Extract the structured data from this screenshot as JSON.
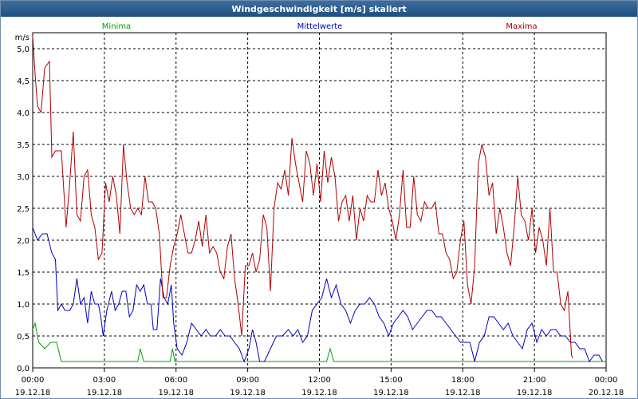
{
  "window": {
    "title": "Windgeschwindigkeit [m/s] skaliert"
  },
  "chart_data": {
    "type": "line",
    "title": "Windgeschwindigkeit [m/s] skaliert",
    "ylabel": "m/s",
    "ylim": [
      0,
      5.25
    ],
    "y_ticks": [
      "0,0",
      "0,5",
      "1,0",
      "1,5",
      "2,0",
      "2,5",
      "3,0",
      "3,5",
      "4,0",
      "4,5",
      "5,0"
    ],
    "x_ticks": [
      {
        "time": "00:00",
        "date": "19.12.18"
      },
      {
        "time": "03:00",
        "date": "19.12.18"
      },
      {
        "time": "06:00",
        "date": "19.12.18"
      },
      {
        "time": "09:00",
        "date": "19.12.18"
      },
      {
        "time": "12:00",
        "date": "19.12.18"
      },
      {
        "time": "15:00",
        "date": "19.12.18"
      },
      {
        "time": "18:00",
        "date": "19.12.18"
      },
      {
        "time": "21:00",
        "date": "19.12.18"
      },
      {
        "time": "00:00",
        "date": "20.12.18"
      }
    ],
    "grid": true,
    "legend_position": "top",
    "series": [
      {
        "name": "Minima",
        "color": "#00a000",
        "points": [
          [
            0,
            0.6
          ],
          [
            0.1,
            0.7
          ],
          [
            0.25,
            0.4
          ],
          [
            0.5,
            0.3
          ],
          [
            0.75,
            0.4
          ],
          [
            1,
            0.4
          ],
          [
            1.2,
            0.1
          ],
          [
            4.4,
            0.1
          ],
          [
            4.5,
            0.3
          ],
          [
            4.65,
            0.1
          ],
          [
            5.75,
            0.1
          ],
          [
            5.85,
            0.3
          ],
          [
            5.95,
            0.1
          ],
          [
            12.3,
            0.1
          ],
          [
            12.45,
            0.3
          ],
          [
            12.6,
            0.1
          ],
          [
            24,
            0.1
          ]
        ]
      },
      {
        "name": "Mittelwerte",
        "color": "#0000c0",
        "points": [
          [
            0,
            2.2
          ],
          [
            0.2,
            2.0
          ],
          [
            0.4,
            2.1
          ],
          [
            0.6,
            2.1
          ],
          [
            0.8,
            1.8
          ],
          [
            0.95,
            1.7
          ],
          [
            1.05,
            0.9
          ],
          [
            1.2,
            1.0
          ],
          [
            1.35,
            0.9
          ],
          [
            1.55,
            0.9
          ],
          [
            1.7,
            1.0
          ],
          [
            1.85,
            1.4
          ],
          [
            2.0,
            1.0
          ],
          [
            2.15,
            1.1
          ],
          [
            2.3,
            0.7
          ],
          [
            2.45,
            1.2
          ],
          [
            2.6,
            1.0
          ],
          [
            2.75,
            1.0
          ],
          [
            2.85,
            0.8
          ],
          [
            2.95,
            0.5
          ],
          [
            3.1,
            0.9
          ],
          [
            3.3,
            1.2
          ],
          [
            3.45,
            0.9
          ],
          [
            3.6,
            1.0
          ],
          [
            3.75,
            1.2
          ],
          [
            3.9,
            1.2
          ],
          [
            4.05,
            0.8
          ],
          [
            4.2,
            0.9
          ],
          [
            4.35,
            1.3
          ],
          [
            4.5,
            1.2
          ],
          [
            4.65,
            1.3
          ],
          [
            4.8,
            1.0
          ],
          [
            4.95,
            1.0
          ],
          [
            5.05,
            0.6
          ],
          [
            5.2,
            0.6
          ],
          [
            5.35,
            1.4
          ],
          [
            5.5,
            1.1
          ],
          [
            5.65,
            1.0
          ],
          [
            5.8,
            1.3
          ],
          [
            5.9,
            0.7
          ],
          [
            6.05,
            0.3
          ],
          [
            6.25,
            0.2
          ],
          [
            6.45,
            0.4
          ],
          [
            6.65,
            0.7
          ],
          [
            6.85,
            0.6
          ],
          [
            7.05,
            0.5
          ],
          [
            7.25,
            0.6
          ],
          [
            7.45,
            0.5
          ],
          [
            7.65,
            0.5
          ],
          [
            7.85,
            0.6
          ],
          [
            8.05,
            0.5
          ],
          [
            8.25,
            0.5
          ],
          [
            8.45,
            0.4
          ],
          [
            8.65,
            0.3
          ],
          [
            8.85,
            0.1
          ],
          [
            9.05,
            0.3
          ],
          [
            9.2,
            0.6
          ],
          [
            9.35,
            0.4
          ],
          [
            9.5,
            0.1
          ],
          [
            9.7,
            0.1
          ],
          [
            9.95,
            0.3
          ],
          [
            10.2,
            0.5
          ],
          [
            10.45,
            0.5
          ],
          [
            10.7,
            0.6
          ],
          [
            10.9,
            0.5
          ],
          [
            11.1,
            0.6
          ],
          [
            11.3,
            0.4
          ],
          [
            11.5,
            0.5
          ],
          [
            11.7,
            0.9
          ],
          [
            11.9,
            1.0
          ],
          [
            12.1,
            1.1
          ],
          [
            12.3,
            1.4
          ],
          [
            12.5,
            1.1
          ],
          [
            12.7,
            1.3
          ],
          [
            12.9,
            1.0
          ],
          [
            13.1,
            0.9
          ],
          [
            13.3,
            0.7
          ],
          [
            13.5,
            0.9
          ],
          [
            13.7,
            1.0
          ],
          [
            13.9,
            1.0
          ],
          [
            14.1,
            1.1
          ],
          [
            14.3,
            1.0
          ],
          [
            14.5,
            0.8
          ],
          [
            14.7,
            0.7
          ],
          [
            14.9,
            0.5
          ],
          [
            15.1,
            0.7
          ],
          [
            15.3,
            0.8
          ],
          [
            15.5,
            0.9
          ],
          [
            15.7,
            0.8
          ],
          [
            15.9,
            0.6
          ],
          [
            16.1,
            0.7
          ],
          [
            16.3,
            0.8
          ],
          [
            16.5,
            0.9
          ],
          [
            16.7,
            0.9
          ],
          [
            16.9,
            0.8
          ],
          [
            17.1,
            0.8
          ],
          [
            17.3,
            0.7
          ],
          [
            17.5,
            0.6
          ],
          [
            17.7,
            0.5
          ],
          [
            17.9,
            0.4
          ],
          [
            18.1,
            0.4
          ],
          [
            18.3,
            0.4
          ],
          [
            18.5,
            0.1
          ],
          [
            18.7,
            0.4
          ],
          [
            18.9,
            0.5
          ],
          [
            19.1,
            0.8
          ],
          [
            19.3,
            0.8
          ],
          [
            19.5,
            0.7
          ],
          [
            19.7,
            0.6
          ],
          [
            19.9,
            0.7
          ],
          [
            20.1,
            0.5
          ],
          [
            20.3,
            0.4
          ],
          [
            20.5,
            0.3
          ],
          [
            20.7,
            0.6
          ],
          [
            20.9,
            0.7
          ],
          [
            21.1,
            0.4
          ],
          [
            21.3,
            0.6
          ],
          [
            21.5,
            0.5
          ],
          [
            21.7,
            0.6
          ],
          [
            21.9,
            0.6
          ],
          [
            22.1,
            0.5
          ],
          [
            22.3,
            0.5
          ],
          [
            22.5,
            0.4
          ],
          [
            22.7,
            0.4
          ],
          [
            22.9,
            0.3
          ],
          [
            23.1,
            0.3
          ],
          [
            23.3,
            0.1
          ],
          [
            23.5,
            0.2
          ],
          [
            23.7,
            0.2
          ],
          [
            23.85,
            0.1
          ]
        ]
      },
      {
        "name": "Maxima",
        "color": "#b00000",
        "points": [
          [
            0,
            5.2
          ],
          [
            0.1,
            4.6
          ],
          [
            0.2,
            4.1
          ],
          [
            0.35,
            4.0
          ],
          [
            0.5,
            4.7
          ],
          [
            0.7,
            4.8
          ],
          [
            0.8,
            3.3
          ],
          [
            0.95,
            3.4
          ],
          [
            1.2,
            3.4
          ],
          [
            1.4,
            2.2
          ],
          [
            1.55,
            2.9
          ],
          [
            1.7,
            3.7
          ],
          [
            1.85,
            2.4
          ],
          [
            2.0,
            2.3
          ],
          [
            2.15,
            3.0
          ],
          [
            2.3,
            3.1
          ],
          [
            2.45,
            2.4
          ],
          [
            2.6,
            2.2
          ],
          [
            2.75,
            1.7
          ],
          [
            2.9,
            1.8
          ],
          [
            3.05,
            2.9
          ],
          [
            3.2,
            2.6
          ],
          [
            3.35,
            3.0
          ],
          [
            3.5,
            2.7
          ],
          [
            3.65,
            2.1
          ],
          [
            3.8,
            3.5
          ],
          [
            3.95,
            2.9
          ],
          [
            4.1,
            2.5
          ],
          [
            4.25,
            2.4
          ],
          [
            4.4,
            2.5
          ],
          [
            4.55,
            2.4
          ],
          [
            4.7,
            3.0
          ],
          [
            4.85,
            2.6
          ],
          [
            5.0,
            2.6
          ],
          [
            5.15,
            2.5
          ],
          [
            5.3,
            2.1
          ],
          [
            5.45,
            1.1
          ],
          [
            5.6,
            1.1
          ],
          [
            5.75,
            1.6
          ],
          [
            5.9,
            1.9
          ],
          [
            6.05,
            2.1
          ],
          [
            6.2,
            2.4
          ],
          [
            6.35,
            2.1
          ],
          [
            6.5,
            1.8
          ],
          [
            6.65,
            1.8
          ],
          [
            6.8,
            2.0
          ],
          [
            6.95,
            2.3
          ],
          [
            7.1,
            1.9
          ],
          [
            7.25,
            2.4
          ],
          [
            7.4,
            1.8
          ],
          [
            7.55,
            1.9
          ],
          [
            7.7,
            1.8
          ],
          [
            7.85,
            1.5
          ],
          [
            8.0,
            1.4
          ],
          [
            8.15,
            1.9
          ],
          [
            8.3,
            2.1
          ],
          [
            8.45,
            1.4
          ],
          [
            8.6,
            1.0
          ],
          [
            8.75,
            0.5
          ],
          [
            8.9,
            1.6
          ],
          [
            9.05,
            1.6
          ],
          [
            9.2,
            1.8
          ],
          [
            9.35,
            1.5
          ],
          [
            9.5,
            1.7
          ],
          [
            9.65,
            2.4
          ],
          [
            9.8,
            2.2
          ],
          [
            9.95,
            1.2
          ],
          [
            10.1,
            2.5
          ],
          [
            10.25,
            2.9
          ],
          [
            10.4,
            2.8
          ],
          [
            10.55,
            3.1
          ],
          [
            10.7,
            2.7
          ],
          [
            10.85,
            3.6
          ],
          [
            11.0,
            3.2
          ],
          [
            11.15,
            2.9
          ],
          [
            11.3,
            2.6
          ],
          [
            11.45,
            3.4
          ],
          [
            11.6,
            3.2
          ],
          [
            11.75,
            2.7
          ],
          [
            11.9,
            3.2
          ],
          [
            12.05,
            2.6
          ],
          [
            12.2,
            3.4
          ],
          [
            12.35,
            2.9
          ],
          [
            12.5,
            3.3
          ],
          [
            12.65,
            3.0
          ],
          [
            12.8,
            2.3
          ],
          [
            12.95,
            2.6
          ],
          [
            13.1,
            2.7
          ],
          [
            13.25,
            2.3
          ],
          [
            13.4,
            2.7
          ],
          [
            13.55,
            2.0
          ],
          [
            13.7,
            2.5
          ],
          [
            13.85,
            2.3
          ],
          [
            14.0,
            2.7
          ],
          [
            14.15,
            2.6
          ],
          [
            14.3,
            2.6
          ],
          [
            14.45,
            3.1
          ],
          [
            14.6,
            2.7
          ],
          [
            14.75,
            2.9
          ],
          [
            14.9,
            2.5
          ],
          [
            15.05,
            2.3
          ],
          [
            15.2,
            2.0
          ],
          [
            15.35,
            2.4
          ],
          [
            15.5,
            3.1
          ],
          [
            15.65,
            2.2
          ],
          [
            15.8,
            2.2
          ],
          [
            15.95,
            3.0
          ],
          [
            16.1,
            2.4
          ],
          [
            16.25,
            2.3
          ],
          [
            16.4,
            2.6
          ],
          [
            16.55,
            2.5
          ],
          [
            16.7,
            2.5
          ],
          [
            16.85,
            2.6
          ],
          [
            17.0,
            2.1
          ],
          [
            17.15,
            2.1
          ],
          [
            17.3,
            1.8
          ],
          [
            17.45,
            1.7
          ],
          [
            17.6,
            1.4
          ],
          [
            17.75,
            1.5
          ],
          [
            17.9,
            2.0
          ],
          [
            18.05,
            2.3
          ],
          [
            18.2,
            1.3
          ],
          [
            18.35,
            1.0
          ],
          [
            18.5,
            1.6
          ],
          [
            18.65,
            3.2
          ],
          [
            18.8,
            3.5
          ],
          [
            18.95,
            3.3
          ],
          [
            19.1,
            2.7
          ],
          [
            19.25,
            2.9
          ],
          [
            19.4,
            2.1
          ],
          [
            19.55,
            2.5
          ],
          [
            19.7,
            2.2
          ],
          [
            19.85,
            1.8
          ],
          [
            20.0,
            1.6
          ],
          [
            20.15,
            2.2
          ],
          [
            20.3,
            3.0
          ],
          [
            20.45,
            2.4
          ],
          [
            20.6,
            2.3
          ],
          [
            20.75,
            2.0
          ],
          [
            20.9,
            2.5
          ],
          [
            21.05,
            1.8
          ],
          [
            21.2,
            2.2
          ],
          [
            21.35,
            2.0
          ],
          [
            21.5,
            1.6
          ],
          [
            21.65,
            2.5
          ],
          [
            21.8,
            1.5
          ],
          [
            21.95,
            1.5
          ],
          [
            22.1,
            1.0
          ],
          [
            22.25,
            0.9
          ],
          [
            22.4,
            1.2
          ],
          [
            22.55,
            0.2
          ],
          [
            22.6,
            0.15
          ]
        ]
      }
    ]
  }
}
